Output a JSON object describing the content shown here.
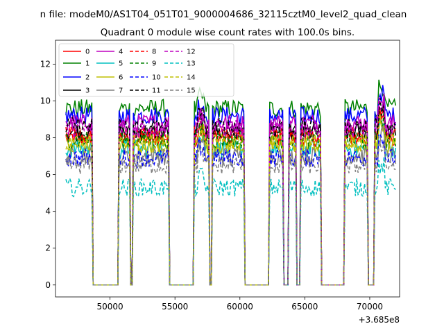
{
  "chart_data": {
    "type": "line",
    "suptitle": "n file: modeM0/AS1T04_051T01_9000004686_32115cztM0_level2_quad_clean",
    "title": "Quadrant 0 module wise count rates with 100.0s bins.",
    "xlabel": "",
    "ylabel": "",
    "x_offset_text": "+3.685e8",
    "xlim": [
      45800,
      72300
    ],
    "ylim": [
      -0.65,
      13.3
    ],
    "x_ticks": [
      50000,
      55000,
      60000,
      65000,
      70000
    ],
    "x_tick_labels": [
      "50000",
      "55000",
      "60000",
      "65000",
      "70000"
    ],
    "y_ticks": [
      0,
      2,
      4,
      6,
      8,
      10,
      12
    ],
    "y_tick_labels": [
      "0",
      "2",
      "4",
      "6",
      "8",
      "10",
      "12"
    ],
    "grid": false,
    "legend": {
      "placement": "top-left",
      "columns": 5
    },
    "segments": [
      [
        46600,
        48600
      ],
      [
        50700,
        51500
      ],
      [
        51800,
        54500
      ],
      [
        56500,
        57600
      ],
      [
        57900,
        60300
      ],
      [
        62300,
        63300
      ],
      [
        63800,
        64300
      ],
      [
        64700,
        66200
      ],
      [
        68100,
        69800
      ],
      [
        70400,
        72000
      ]
    ],
    "series": [
      {
        "name": "0",
        "color": "#ff0000",
        "dash": "solid",
        "level": 8.0
      },
      {
        "name": "1",
        "color": "#008000",
        "dash": "solid",
        "level": 9.6
      },
      {
        "name": "2",
        "color": "#0000ff",
        "dash": "solid",
        "level": 9.2
      },
      {
        "name": "3",
        "color": "#000000",
        "dash": "solid",
        "level": 8.3
      },
      {
        "name": "4",
        "color": "#bf00bf",
        "dash": "solid",
        "level": 8.8
      },
      {
        "name": "5",
        "color": "#00bfbf",
        "dash": "solid",
        "level": 7.4
      },
      {
        "name": "6",
        "color": "#bfbf00",
        "dash": "solid",
        "level": 7.6
      },
      {
        "name": "7",
        "color": "#808080",
        "dash": "solid",
        "level": 7.0
      },
      {
        "name": "8",
        "color": "#ff0000",
        "dash": "dashed",
        "level": 8.1
      },
      {
        "name": "9",
        "color": "#008000",
        "dash": "dashed",
        "level": 7.9
      },
      {
        "name": "10",
        "color": "#0000ff",
        "dash": "dashed",
        "level": 6.9
      },
      {
        "name": "11",
        "color": "#000000",
        "dash": "dashed",
        "level": 8.6
      },
      {
        "name": "12",
        "color": "#bf00bf",
        "dash": "dashed",
        "level": 8.5
      },
      {
        "name": "13",
        "color": "#00bfbf",
        "dash": "dashed",
        "level": 5.3
      },
      {
        "name": "14",
        "color": "#bfbf00",
        "dash": "dashed",
        "level": 7.7
      },
      {
        "name": "15",
        "color": "#808080",
        "dash": "dashed",
        "level": 6.5
      }
    ]
  }
}
